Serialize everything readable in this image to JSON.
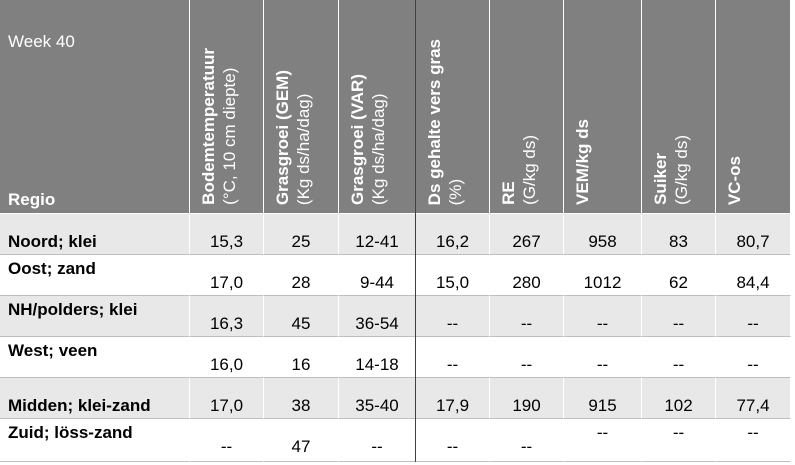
{
  "header": {
    "week": "Week 40",
    "region_label": "Regio",
    "columns": [
      {
        "title": "Bodemtemperatuur",
        "unit": "(°C, 10 cm diepte)"
      },
      {
        "title": "Grasgroei (GEM)",
        "unit": "(Kg ds/ha/dag)"
      },
      {
        "title": "Grasgroei (VAR)",
        "unit": "(Kg ds/ha/dag)"
      },
      {
        "title": "Ds gehalte vers gras",
        "unit": "(%)"
      },
      {
        "title": "RE",
        "unit": "(G/kg ds)"
      },
      {
        "title": "VEM/kg ds"
      },
      {
        "title": "Suiker",
        "unit": "(G/kg ds)"
      },
      {
        "title": "VC-os"
      }
    ]
  },
  "table": {
    "rows": [
      [
        "Noord; klei",
        "15,3",
        "25",
        "12-41",
        "16,2",
        "267",
        "958",
        "83",
        "80,7"
      ],
      [
        "Oost; zand",
        "17,0",
        "28",
        "9-44",
        "15,0",
        "280",
        "1012",
        "62",
        "84,4"
      ],
      [
        "NH/polders; klei",
        "16,3",
        "45",
        "36-54",
        "--",
        "--",
        "--",
        "--",
        "--"
      ],
      [
        "West; veen",
        "16,0",
        "16",
        "14-18",
        "--",
        "--",
        "--",
        "--",
        "--"
      ],
      [
        "Midden; klei-zand",
        "17,0",
        "38",
        "35-40",
        "17,9",
        "190",
        "915",
        "102",
        "77,4"
      ],
      [
        "Zuid; löss-zand",
        "--",
        "47",
        "--",
        "--",
        "--",
        "--",
        "--",
        "--"
      ]
    ]
  }
}
